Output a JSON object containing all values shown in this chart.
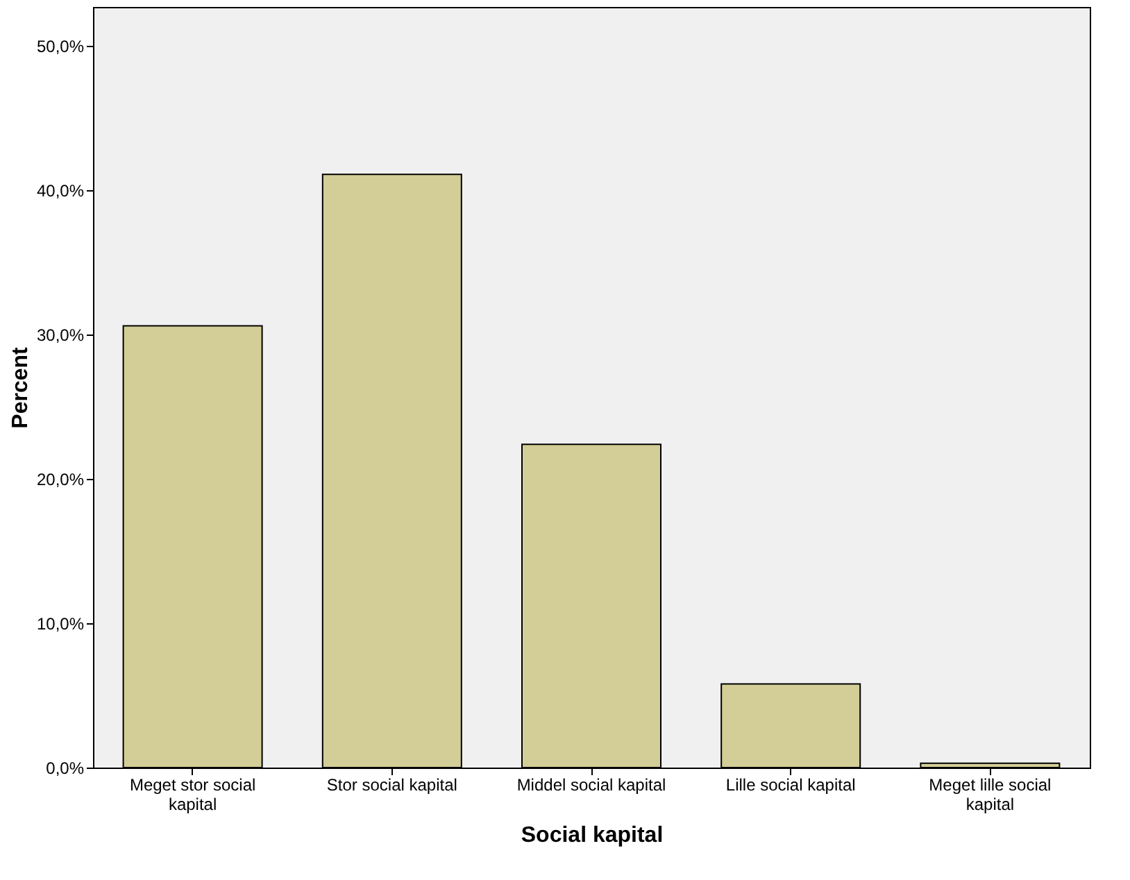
{
  "chart_data": {
    "type": "bar",
    "xlabel": "Social kapital",
    "ylabel": "Percent",
    "categories": [
      "Meget stor social kapital",
      "Stor social kapital",
      "Middel social kapital",
      "Lille social kapital",
      "Meget lille social kapital"
    ],
    "values": [
      30.6,
      41.1,
      22.4,
      5.8,
      0.3
    ],
    "color": "#d3ce97",
    "ylim": [
      0,
      52.7
    ],
    "yticks": [
      {
        "value": 0,
        "label": "0,0%"
      },
      {
        "value": 10,
        "label": "10,0%"
      },
      {
        "value": 20,
        "label": "20,0%"
      },
      {
        "value": 30,
        "label": "30,0%"
      },
      {
        "value": 40,
        "label": "40,0%"
      },
      {
        "value": 50,
        "label": "50,0%"
      }
    ],
    "grid": false
  }
}
